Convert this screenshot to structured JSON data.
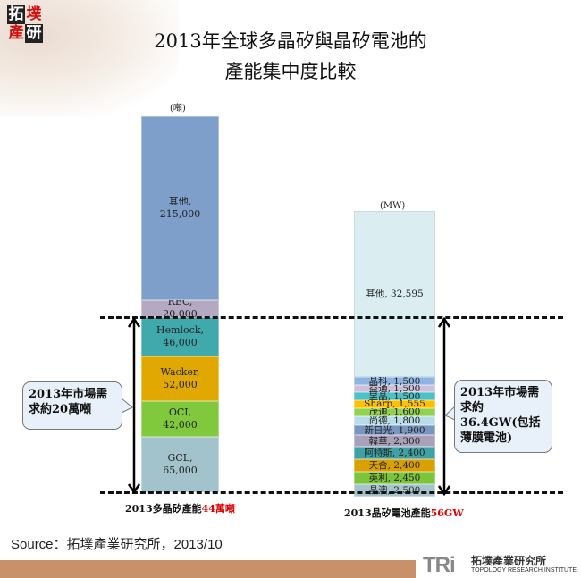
{
  "logo": {
    "chars": [
      "拓",
      "墣",
      "產",
      "研"
    ]
  },
  "title": {
    "line1": "2013年全球多晶矽與晶矽電池的",
    "line2": "產能集中度比較"
  },
  "chart_data": [
    {
      "type": "bar",
      "stacked": true,
      "unit_label": "(噸)",
      "caption_prefix": "2013多晶矽產能",
      "caption_highlight": "44萬噸",
      "segments": [
        {
          "name": "GCL",
          "value": 65000,
          "label": "GCL,\n65,000",
          "color": "#a3c3cc"
        },
        {
          "name": "OCI",
          "value": 42000,
          "label": "OCI,\n42,000",
          "color": "#80c83c"
        },
        {
          "name": "Wacker",
          "value": 52000,
          "label": "Wacker,\n52,000",
          "color": "#e0a800"
        },
        {
          "name": "Hemlock",
          "value": 46000,
          "label": "Hemlock,\n46,000",
          "color": "#3fa9ac"
        },
        {
          "name": "REC",
          "value": 20000,
          "label": "REC,\n20,000",
          "color": "#b3a9c3"
        },
        {
          "name": "其他",
          "value": 215000,
          "label": "其他,\n215,000",
          "color": "#7f9fcb"
        }
      ],
      "demand_callout": "2013年市場需求約20萬噸",
      "demand_value": 200000
    },
    {
      "type": "bar",
      "stacked": true,
      "unit_label": "(MW)",
      "caption_prefix": "2013晶矽電池產能",
      "caption_highlight": "56GW",
      "segments": [
        {
          "name": "晶澳",
          "value": 2500,
          "label": "晶澳, 2,500",
          "color": "#a5c4ce"
        },
        {
          "name": "英利",
          "value": 2450,
          "label": "英利, 2,450",
          "color": "#7cc43a"
        },
        {
          "name": "天合",
          "value": 2400,
          "label": "天合, 2,400",
          "color": "#d9a000"
        },
        {
          "name": "阿特斯",
          "value": 2400,
          "label": "阿特斯, 2,400",
          "color": "#3ea1a4"
        },
        {
          "name": "韓華",
          "value": 2300,
          "label": "韓華, 2,300",
          "color": "#a9a0ba"
        },
        {
          "name": "新日光",
          "value": 1900,
          "label": "新日光, 1,900",
          "color": "#7896c0"
        },
        {
          "name": "尚德",
          "value": 1800,
          "label": "尚德, 1,800",
          "color": "#b7dee8"
        },
        {
          "name": "茂迪",
          "value": 1600,
          "label": "茂迪, 1,600",
          "color": "#92d050"
        },
        {
          "name": "Sharp",
          "value": 1555,
          "label": "Sharp, 1,555",
          "color": "#ffc000"
        },
        {
          "name": "昱晶",
          "value": 1500,
          "label": "昱晶, 1,500",
          "color": "#4bc0c6"
        },
        {
          "name": "益通",
          "value": 1500,
          "label": "益通, 1,500",
          "color": "#ccc0da"
        },
        {
          "name": "晶科",
          "value": 1500,
          "label": "晶科, 1,500",
          "color": "#8eb4e3"
        },
        {
          "name": "其他",
          "value": 32595,
          "label": "其他, 32,595",
          "color": "#daeef2"
        }
      ],
      "demand_callout": "2013年市場需求約36.4GW(包括薄膜電池)",
      "demand_value": 36400
    }
  ],
  "source": "Source：拓墣產業研究所，2013/10",
  "footer": {
    "brand": "TRi",
    "name_zh": "拓墣產業研究所",
    "name_en": "TOPOLOGY RESEARCH INSTITUTE"
  }
}
